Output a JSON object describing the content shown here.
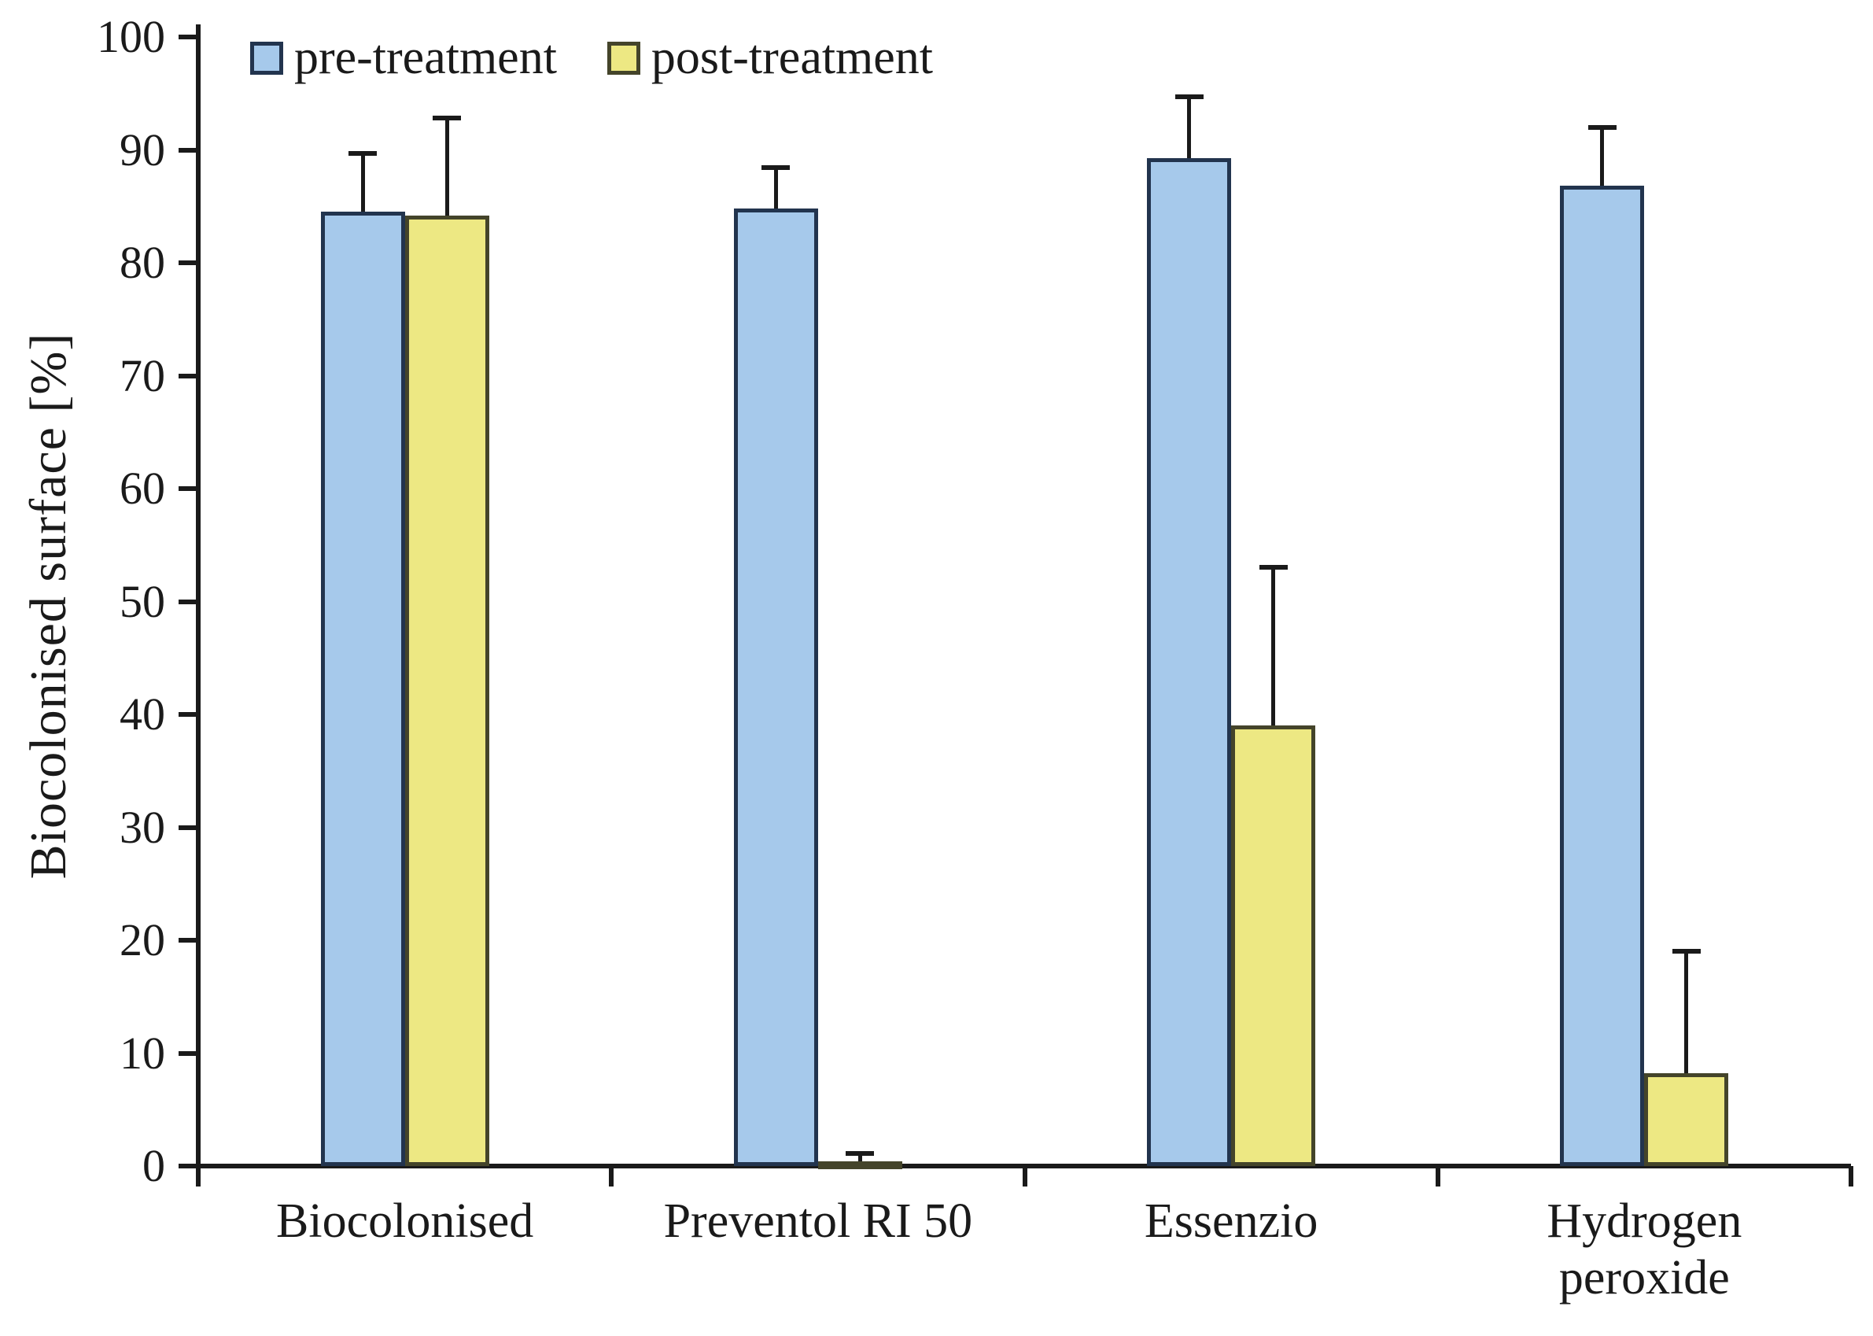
{
  "chart_data": {
    "type": "bar",
    "title": "",
    "ylabel": "Biocolonised surface [%]",
    "xlabel": "",
    "ylim": [
      0,
      100
    ],
    "yticks": [
      0,
      10,
      20,
      30,
      40,
      50,
      60,
      70,
      80,
      90,
      100
    ],
    "grid": false,
    "legend_position": "top inside plot",
    "error_bars": "upper whiskers with caps",
    "axis_color": "#1a1a1a",
    "categories": [
      "Biocolonised",
      "Preventol RI 50",
      "Essenzio",
      "Hydrogen peroxide"
    ],
    "category_display": [
      "Biocolonised",
      "Preventol RI 50",
      "Essenzio",
      "Hydrogen\nperoxide"
    ],
    "series": [
      {
        "name": "pre-treatment",
        "fill": "#A6C9EB",
        "border": "#22344E",
        "values": [
          84.5,
          84.8,
          89.3,
          86.8
        ],
        "errors_plus": [
          5.2,
          3.6,
          5.4,
          5.2
        ]
      },
      {
        "name": "post-treatment",
        "fill": "#EDE883",
        "border": "#44442A",
        "values": [
          84.2,
          0.4,
          39.0,
          8.2
        ],
        "errors_plus": [
          8.6,
          0.7,
          14.0,
          10.8
        ]
      }
    ]
  }
}
